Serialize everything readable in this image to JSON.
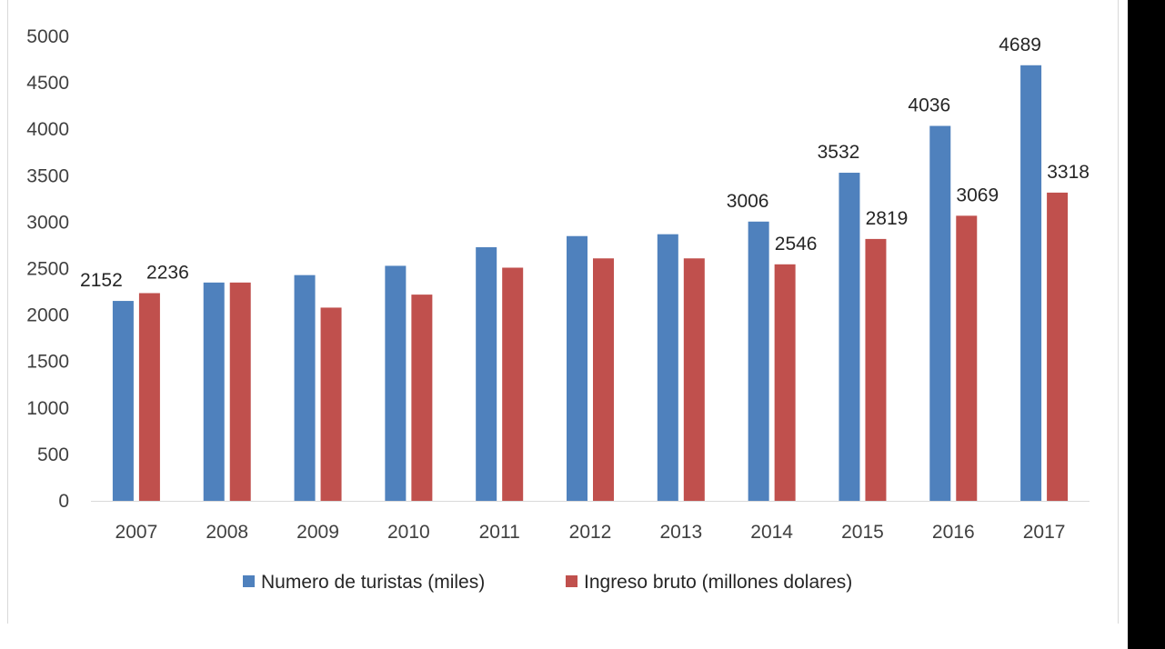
{
  "chart_data": {
    "type": "bar",
    "categories": [
      "2007",
      "2008",
      "2009",
      "2010",
      "2011",
      "2012",
      "2013",
      "2014",
      "2015",
      "2016",
      "2017"
    ],
    "series": [
      {
        "name": "Numero de turistas (miles)",
        "color": "#4f81bd",
        "values": [
          2152,
          2350,
          2430,
          2530,
          2730,
          2850,
          2870,
          3006,
          3532,
          4036,
          4689
        ],
        "labels": [
          "2152",
          null,
          null,
          null,
          null,
          null,
          null,
          "3006",
          "3532",
          "4036",
          "4689"
        ]
      },
      {
        "name": "Ingreso bruto (millones dolares)",
        "color": "#c0504d",
        "values": [
          2236,
          2350,
          2080,
          2220,
          2510,
          2610,
          2610,
          2546,
          2819,
          3069,
          3318
        ],
        "labels": [
          "2236",
          null,
          null,
          null,
          null,
          null,
          null,
          "2546",
          "2819",
          "3069",
          "3318"
        ]
      }
    ],
    "yticks": [
      "0",
      "500",
      "1000",
      "1500",
      "2000",
      "2500",
      "3000",
      "3500",
      "4000",
      "4500",
      "5000"
    ],
    "ylim": [
      0,
      5000
    ],
    "title": "",
    "xlabel": "",
    "ylabel": "",
    "grid": false,
    "legend_position": "bottom"
  }
}
